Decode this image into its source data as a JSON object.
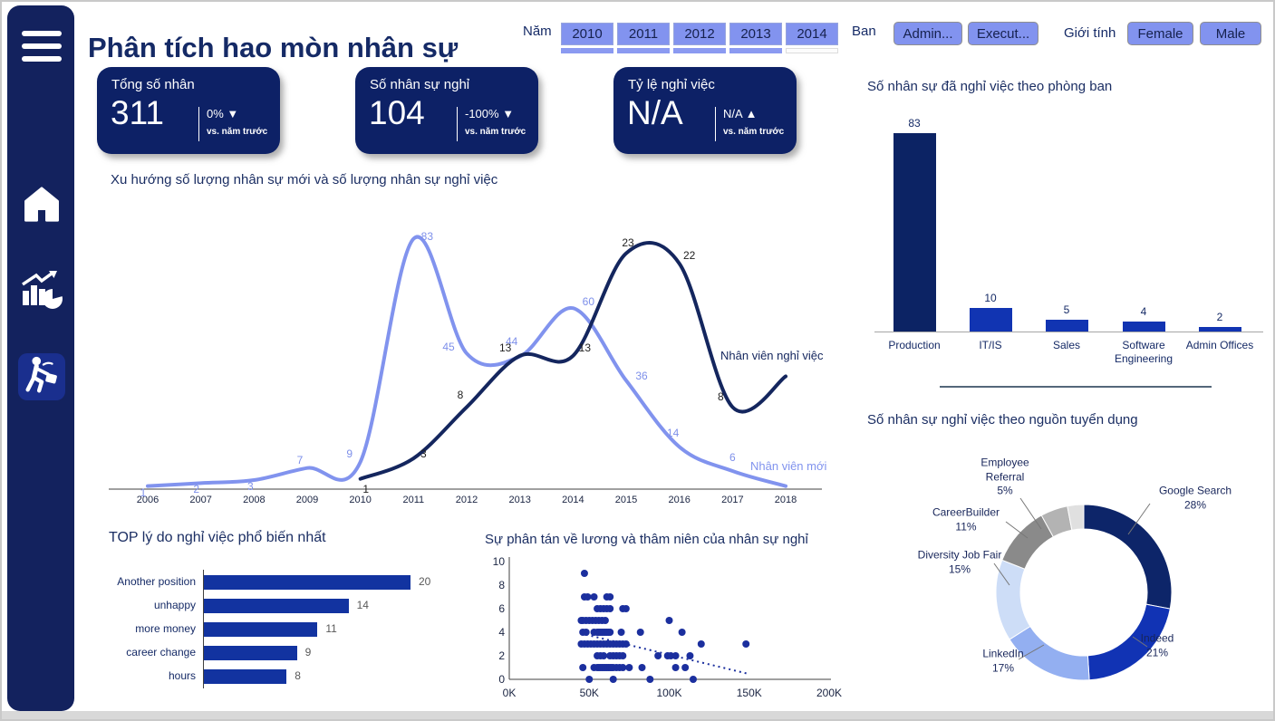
{
  "app": {
    "title": "Phân tích hao mòn nhân sự"
  },
  "sidebar": {
    "items": [
      {
        "name": "menu"
      },
      {
        "name": "home"
      },
      {
        "name": "analytics"
      },
      {
        "name": "attrition",
        "active": true
      }
    ]
  },
  "filters": {
    "year": {
      "label": "Năm",
      "options": [
        "2010",
        "2011",
        "2012",
        "2013",
        "2014"
      ]
    },
    "department": {
      "label": "Ban",
      "options": [
        "Admin...",
        "Execut..."
      ]
    },
    "gender": {
      "label": "Giới tính",
      "options": [
        "Female",
        "Male"
      ]
    }
  },
  "kpis": [
    {
      "title": "Tổng số nhân",
      "value": "311",
      "delta": "0%",
      "arrow": "▼",
      "caption": "vs. năm trước"
    },
    {
      "title": "Số nhân sự nghỉ",
      "value": "104",
      "delta": "-100%",
      "arrow": "▼",
      "caption": "vs. năm trước"
    },
    {
      "title": "Tỷ lệ nghỉ việc",
      "value": "N/A",
      "delta": "N/A",
      "arrow": "▲",
      "caption": "vs. năm trước"
    }
  ],
  "chart_data": [
    {
      "id": "trend",
      "type": "line",
      "title": "Xu hướng số lượng nhân sự mới và số lượng nhân sự nghỉ việc",
      "x": [
        "2006",
        "2007",
        "2008",
        "2009",
        "2010",
        "2011",
        "2012",
        "2013",
        "2014",
        "2015",
        "2016",
        "2017",
        "2018"
      ],
      "series": [
        {
          "name": "Nhân viên mới",
          "color": "#8193ee",
          "ymax": 85,
          "values": [
            1,
            2,
            3,
            7,
            9,
            83,
            45,
            44,
            60,
            36,
            14,
            6,
            1
          ],
          "labels_shown": [
            true,
            true,
            true,
            true,
            true,
            true,
            true,
            true,
            true,
            true,
            true,
            true,
            false
          ]
        },
        {
          "name": "Nhân viên nghỉ việc",
          "color": "#14265e",
          "ymax": 25,
          "values": [
            null,
            null,
            null,
            null,
            1,
            3,
            8,
            13,
            13,
            23,
            22,
            8,
            11
          ],
          "labels_shown": [
            false,
            false,
            false,
            false,
            true,
            true,
            true,
            true,
            true,
            true,
            true,
            true,
            false
          ]
        }
      ],
      "legend_position": "inline-right",
      "grid": false
    },
    {
      "id": "dept",
      "type": "bar",
      "title": "Số nhân sự đã nghỉ việc theo phòng ban",
      "categories": [
        "Production",
        "IT/IS",
        "Sales",
        "Software Engineering",
        "Admin Offices"
      ],
      "values": [
        83,
        10,
        5,
        4,
        2
      ],
      "bar_colors": [
        "#0c2364",
        "#1134b2",
        "#1134b2",
        "#1134b2",
        "#1134b2"
      ],
      "ylim": [
        0,
        83
      ],
      "grid": false
    },
    {
      "id": "source",
      "type": "pie",
      "title": "Số nhân sự nghỉ việc theo nguồn tuyển dụng",
      "slices": [
        {
          "label": "Google Search",
          "pct": 28,
          "color": "#0d2569"
        },
        {
          "label": "Indeed",
          "pct": 21,
          "color": "#1133b4"
        },
        {
          "label": "LinkedIn",
          "pct": 17,
          "color": "#93aff1"
        },
        {
          "label": "Diversity Job Fair",
          "pct": 15,
          "color": "#cdddf7"
        },
        {
          "label": "CareerBuilder",
          "pct": 11,
          "color": "#8a8a8a"
        },
        {
          "label": "Employee Referral",
          "pct": 5,
          "color": "#b3b3b3"
        },
        {
          "label": "",
          "pct": 3,
          "color": "#e0e0e0"
        }
      ],
      "donut": true
    },
    {
      "id": "reasons",
      "type": "bar",
      "orientation": "horizontal",
      "title": "TOP lý do nghỉ việc phổ biến nhất",
      "categories": [
        "Another position",
        "unhappy",
        "more money",
        "career change",
        "hours"
      ],
      "values": [
        20,
        14,
        11,
        9,
        8
      ],
      "bar_color": "#1233a0",
      "grid": false
    },
    {
      "id": "salary",
      "type": "scatter",
      "title": "Sự phân tán về lương và thâm niên của nhân sự nghỉ",
      "xlabel": "",
      "ylabel": "",
      "xlim": [
        0,
        200
      ],
      "ylim": [
        0,
        10
      ],
      "x_ticks": [
        "0K",
        "50K",
        "100K",
        "150K",
        "200K"
      ],
      "y_ticks": [
        "0",
        "2",
        "4",
        "6",
        "8",
        "10"
      ],
      "point_color": "#1b2f9e",
      "points": [
        [
          47,
          9
        ],
        [
          47,
          7
        ],
        [
          49,
          7
        ],
        [
          53,
          7
        ],
        [
          61,
          7
        ],
        [
          63,
          7
        ],
        [
          55,
          6
        ],
        [
          57,
          6
        ],
        [
          59,
          6
        ],
        [
          61,
          6
        ],
        [
          63,
          6
        ],
        [
          71,
          6
        ],
        [
          73,
          6
        ],
        [
          45,
          5
        ],
        [
          46,
          5
        ],
        [
          48,
          5
        ],
        [
          50,
          5
        ],
        [
          52,
          5
        ],
        [
          54,
          5
        ],
        [
          56,
          5
        ],
        [
          58,
          5
        ],
        [
          60,
          5
        ],
        [
          100,
          5
        ],
        [
          46,
          4
        ],
        [
          48,
          4
        ],
        [
          53,
          4
        ],
        [
          55,
          4
        ],
        [
          56,
          4
        ],
        [
          57,
          4
        ],
        [
          58,
          4
        ],
        [
          59,
          4
        ],
        [
          60,
          4
        ],
        [
          61,
          4
        ],
        [
          62,
          4
        ],
        [
          63,
          4
        ],
        [
          70,
          4
        ],
        [
          82,
          4
        ],
        [
          108,
          4
        ],
        [
          45,
          3
        ],
        [
          47,
          3
        ],
        [
          49,
          3
        ],
        [
          51,
          3
        ],
        [
          53,
          3
        ],
        [
          55,
          3
        ],
        [
          57,
          3
        ],
        [
          59,
          3
        ],
        [
          61,
          3
        ],
        [
          63,
          3
        ],
        [
          65,
          3
        ],
        [
          67,
          3
        ],
        [
          69,
          3
        ],
        [
          71,
          3
        ],
        [
          73,
          3
        ],
        [
          120,
          3
        ],
        [
          148,
          3
        ],
        [
          55,
          2
        ],
        [
          57,
          2
        ],
        [
          59,
          2
        ],
        [
          63,
          2
        ],
        [
          65,
          2
        ],
        [
          67,
          2
        ],
        [
          69,
          2
        ],
        [
          71,
          2
        ],
        [
          93,
          2
        ],
        [
          99,
          2
        ],
        [
          101,
          2
        ],
        [
          104,
          2
        ],
        [
          113,
          2
        ],
        [
          46,
          1
        ],
        [
          53,
          1
        ],
        [
          55,
          1
        ],
        [
          56,
          1
        ],
        [
          57,
          1
        ],
        [
          58,
          1
        ],
        [
          59,
          1
        ],
        [
          60,
          1
        ],
        [
          61,
          1
        ],
        [
          62,
          1
        ],
        [
          63,
          1
        ],
        [
          64,
          1
        ],
        [
          65,
          1
        ],
        [
          67,
          1
        ],
        [
          69,
          1
        ],
        [
          71,
          1
        ],
        [
          75,
          1
        ],
        [
          83,
          1
        ],
        [
          104,
          1
        ],
        [
          110,
          1
        ],
        [
          50,
          0
        ],
        [
          65,
          0
        ],
        [
          88,
          0
        ],
        [
          115,
          0
        ]
      ],
      "trend": {
        "from": [
          48,
          3.8
        ],
        "to": [
          150,
          0.45
        ],
        "style": "dotted"
      }
    }
  ],
  "colors": {
    "navy_text": "#152a66",
    "card_bg": "#0d2166",
    "sidebar_bg": "#13225e",
    "sidebar_active": "#1a2f8e",
    "periwinkle": "#8193ee",
    "bright_blue": "#1134b2",
    "bottom_strip": "#d8d8d8"
  }
}
